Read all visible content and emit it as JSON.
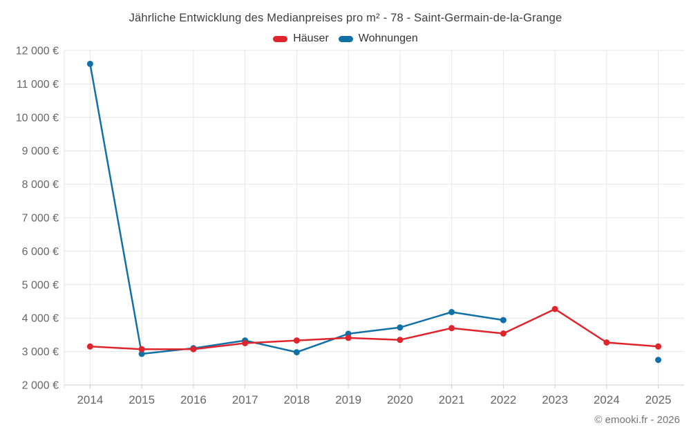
{
  "chart_data": {
    "type": "line",
    "title": "Jährliche Entwicklung des Medianpreises pro m² - 78 - Saint-Germain-de-la-Grange",
    "categories": [
      "2014",
      "2015",
      "2016",
      "2017",
      "2018",
      "2019",
      "2020",
      "2021",
      "2022",
      "2023",
      "2024",
      "2025"
    ],
    "series": [
      {
        "name": "Häuser",
        "color": "#e0242c",
        "values": [
          3150,
          3070,
          3070,
          3250,
          3330,
          3410,
          3350,
          3700,
          3540,
          4270,
          3270,
          3150
        ]
      },
      {
        "name": "Wohnungen",
        "color": "#1170a5",
        "values": [
          11600,
          2930,
          3100,
          3330,
          2980,
          3530,
          3720,
          4180,
          3940,
          null,
          null,
          2750
        ]
      }
    ],
    "xlabel": "",
    "ylabel": "",
    "ylim": [
      2000,
      12000
    ],
    "ytick_step": 1000,
    "ytick_labels": [
      "2 000 €",
      "3 000 €",
      "4 000 €",
      "5 000 €",
      "6 000 €",
      "7 000 €",
      "8 000 €",
      "9 000 €",
      "10 000 €",
      "11 000 €",
      "12 000 €"
    ],
    "grid": true,
    "legend_position": "top-center",
    "styles": {
      "grid_color": "#e6e6e6",
      "axis_line_color": "#cccccc",
      "tick_label_color": "#666666",
      "title_color": "#3e3e3e",
      "marker_radius": 4.5,
      "line_width": 2.5
    }
  },
  "footer": {
    "attribution": "© emooki.fr - 2026"
  }
}
